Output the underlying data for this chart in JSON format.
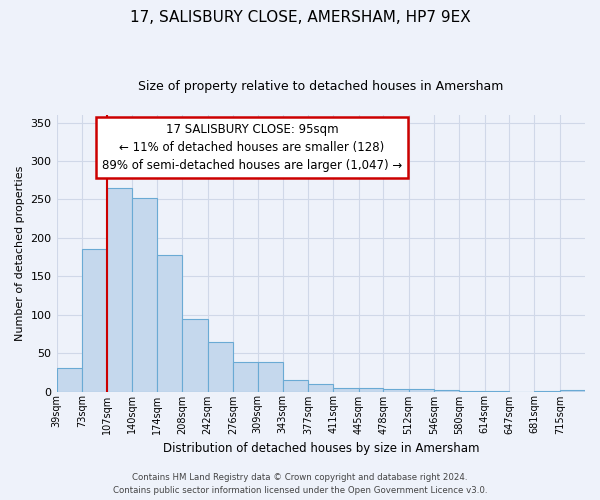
{
  "title": "17, SALISBURY CLOSE, AMERSHAM, HP7 9EX",
  "subtitle": "Size of property relative to detached houses in Amersham",
  "xlabel": "Distribution of detached houses by size in Amersham",
  "ylabel": "Number of detached properties",
  "bar_values": [
    30,
    185,
    265,
    252,
    178,
    94,
    65,
    38,
    38,
    15,
    10,
    5,
    5,
    3,
    3,
    2,
    1,
    1,
    0,
    1,
    2
  ],
  "x_tick_labels": [
    "39sqm",
    "73sqm",
    "107sqm",
    "140sqm",
    "174sqm",
    "208sqm",
    "242sqm",
    "276sqm",
    "309sqm",
    "343sqm",
    "377sqm",
    "411sqm",
    "445sqm",
    "478sqm",
    "512sqm",
    "546sqm",
    "580sqm",
    "614sqm",
    "647sqm",
    "681sqm",
    "715sqm"
  ],
  "bar_color": "#c5d8ed",
  "bar_edge_color": "#6aaad4",
  "bar_edge_width": 0.8,
  "reference_line_color": "#cc0000",
  "reference_line_x": 95,
  "ylim": [
    0,
    360
  ],
  "yticks": [
    0,
    50,
    100,
    150,
    200,
    250,
    300,
    350
  ],
  "annotation_title": "17 SALISBURY CLOSE: 95sqm",
  "annotation_line1": "← 11% of detached houses are smaller (128)",
  "annotation_line2": "89% of semi-detached houses are larger (1,047) →",
  "annotation_box_facecolor": "#ffffff",
  "annotation_box_edgecolor": "#cc0000",
  "footnote1": "Contains HM Land Registry data © Crown copyright and database right 2024.",
  "footnote2": "Contains public sector information licensed under the Open Government Licence v3.0.",
  "fig_facecolor": "#eef2fa",
  "plot_facecolor": "#eef2fa",
  "grid_color": "#d0d8e8",
  "bin_edges": [
    39,
    73,
    107,
    140,
    174,
    208,
    242,
    276,
    309,
    343,
    377,
    411,
    445,
    478,
    512,
    546,
    580,
    614,
    647,
    681,
    715,
    749
  ]
}
